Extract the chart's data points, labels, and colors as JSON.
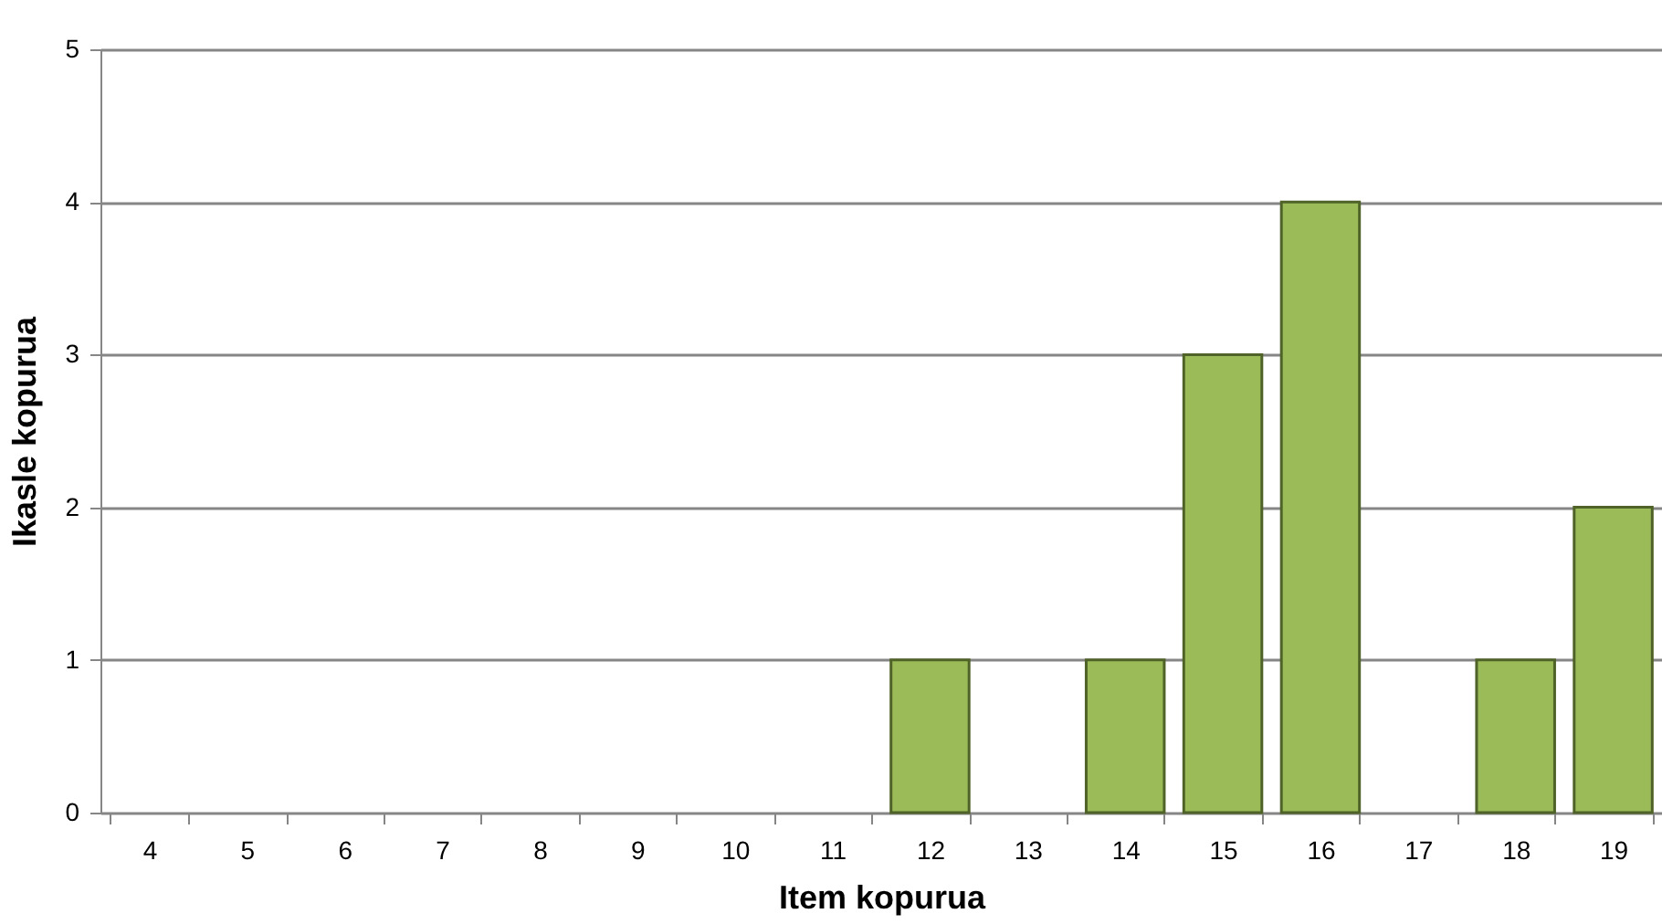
{
  "chart_data": {
    "type": "bar",
    "xlabel": "Item kopurua",
    "ylabel": "Ikasle kopurua",
    "categories": [
      "4",
      "5",
      "6",
      "7",
      "8",
      "9",
      "10",
      "11",
      "12",
      "13",
      "14",
      "15",
      "16",
      "17",
      "18",
      "19"
    ],
    "values": [
      0,
      0,
      0,
      0,
      0,
      0,
      0,
      0,
      1,
      0,
      1,
      3,
      4,
      0,
      1,
      2
    ],
    "color": "#9bbb59",
    "ylim": [
      0,
      5
    ],
    "yticks": [
      0,
      1,
      2,
      3,
      4,
      5
    ],
    "grid": "y"
  }
}
